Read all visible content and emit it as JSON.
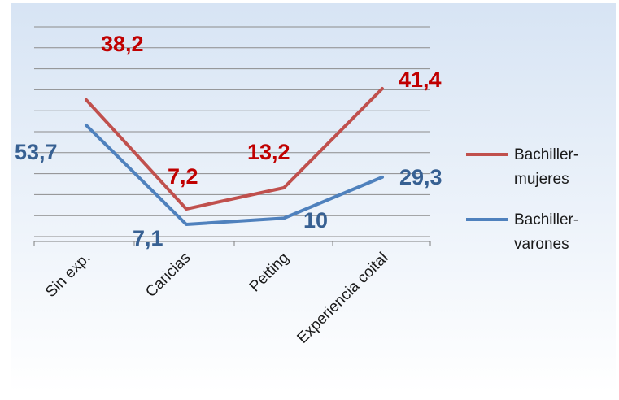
{
  "chart_data": {
    "type": "line",
    "title": "",
    "xlabel": "",
    "ylabel": "",
    "categories": [
      "Sin exp.",
      "Caricias",
      "Petting",
      "Experiencia coital"
    ],
    "series": [
      {
        "name": "Bachiller-mujeres",
        "name_lines": [
          "Bachiller-",
          "mujeres"
        ],
        "color": "#c0504d",
        "label_color": "#c00000",
        "values": [
          38.2,
          7.2,
          13.2,
          41.4
        ],
        "labels": [
          "38,2",
          "7,2",
          "13,2",
          "41,4"
        ]
      },
      {
        "name": "Bachiller-varones",
        "name_lines": [
          "Bachiller-",
          "varones"
        ],
        "color": "#4f81bd",
        "label_color": "#376092",
        "values": [
          53.7,
          7.1,
          10,
          29.3
        ],
        "labels": [
          "53,7",
          "7,1",
          "10",
          "29,3"
        ]
      }
    ],
    "grid": true,
    "legend_position": "right",
    "background_gradient": [
      "#d7e4f4",
      "#ffffff"
    ],
    "grid_color": "#8c8c8c"
  }
}
